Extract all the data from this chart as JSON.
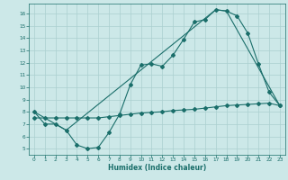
{
  "xlabel": "Humidex (Indice chaleur)",
  "bg_color": "#cce8e8",
  "line_color": "#1a6e6a",
  "grid_color": "#aacfcf",
  "xlim": [
    -0.5,
    23.5
  ],
  "ylim": [
    4.5,
    16.8
  ],
  "yticks": [
    5,
    6,
    7,
    8,
    9,
    10,
    11,
    12,
    13,
    14,
    15,
    16
  ],
  "xticks": [
    0,
    1,
    2,
    3,
    4,
    5,
    6,
    7,
    8,
    9,
    10,
    11,
    12,
    13,
    14,
    15,
    16,
    17,
    18,
    19,
    20,
    21,
    22,
    23
  ],
  "line1_x": [
    0,
    1,
    2,
    3,
    4,
    5,
    6,
    7,
    8,
    9,
    10,
    11,
    12,
    13,
    14,
    15,
    16,
    17,
    18,
    19,
    20,
    21,
    22,
    23
  ],
  "line1_y": [
    8.0,
    7.0,
    7.0,
    6.5,
    5.3,
    5.0,
    5.1,
    6.3,
    7.8,
    10.2,
    11.8,
    11.9,
    11.7,
    12.6,
    13.9,
    15.3,
    15.5,
    16.3,
    16.2,
    15.8,
    14.4,
    11.9,
    9.6,
    8.5
  ],
  "line2_x": [
    0,
    3,
    17,
    18,
    23
  ],
  "line2_y": [
    8.0,
    6.5,
    16.3,
    16.2,
    8.5
  ],
  "line3_x": [
    0,
    1,
    2,
    3,
    4,
    5,
    6,
    7,
    8,
    9,
    10,
    11,
    12,
    13,
    14,
    15,
    16,
    17,
    18,
    19,
    20,
    21,
    22,
    23
  ],
  "line3_y": [
    7.5,
    7.5,
    7.5,
    7.5,
    7.5,
    7.5,
    7.5,
    7.6,
    7.7,
    7.8,
    7.9,
    7.95,
    8.0,
    8.1,
    8.15,
    8.2,
    8.3,
    8.4,
    8.5,
    8.55,
    8.6,
    8.65,
    8.7,
    8.5
  ]
}
